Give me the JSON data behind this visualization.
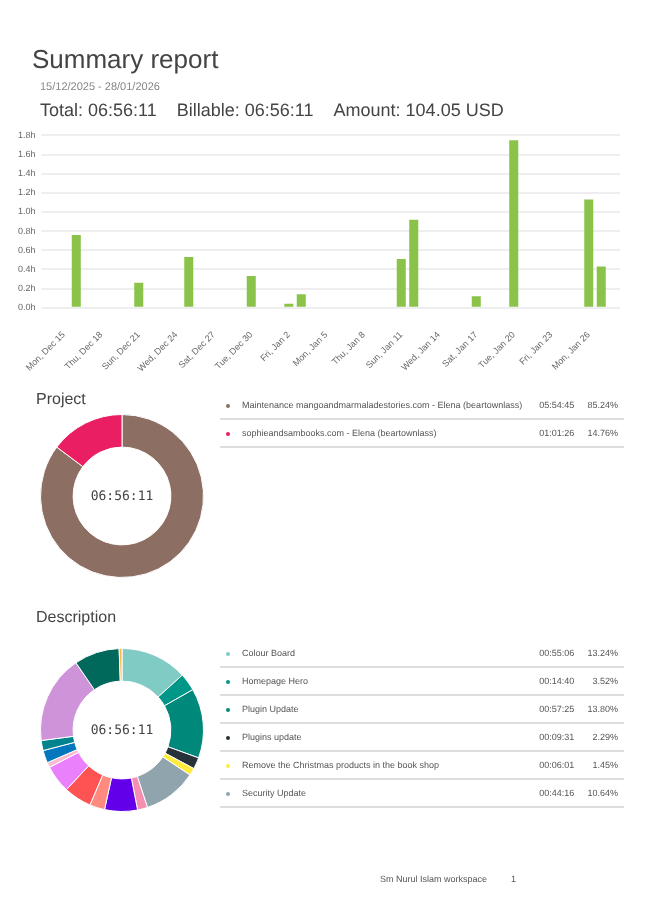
{
  "chart_data": [
    {
      "type": "bar",
      "title": "Summary report",
      "subtitle": "15/12/2025 - 28/01/2026",
      "annotations": [
        "Total: 06:56:11",
        "Billable: 06:56:11",
        "Amount: 104.05 USD"
      ],
      "categories": [
        "Mon, Dec 15",
        null,
        null,
        "Thu, Dec 18",
        null,
        null,
        "Sun, Dec 21",
        null,
        null,
        "Wed, Dec 24",
        null,
        null,
        "Sat, Dec 27",
        null,
        null,
        "Tue, Dec 30",
        null,
        null,
        "Fri, Jan 2",
        null,
        null,
        "Mon, Jan 5",
        null,
        null,
        "Thu, Jan 8",
        null,
        null,
        "Sun, Jan 11",
        null,
        null,
        "Wed, Jan 14",
        null,
        null,
        "Sat, Jan 17",
        null,
        null,
        "Tue, Jan 20",
        null,
        null,
        "Fri, Jan 23",
        null,
        null,
        "Mon, Jan 26",
        null,
        null
      ],
      "values": [
        0,
        0.76,
        0,
        0,
        0,
        0,
        0.26,
        0,
        0,
        0,
        0.53,
        0,
        0,
        0,
        0,
        0.33,
        0,
        0,
        0.04,
        0.14,
        0,
        0,
        0,
        0,
        0,
        0,
        0,
        0.51,
        0.92,
        0,
        0,
        0,
        0,
        0.12,
        0,
        0,
        1.75,
        0,
        0,
        0,
        0,
        0,
        1.13,
        0.43,
        0
      ],
      "color": "#8bc34a",
      "ylim": [
        0,
        1.8
      ],
      "yticks": [
        {
          "value": 0,
          "label": "0.0h"
        },
        {
          "value": 0.2,
          "label": "0.2h"
        },
        {
          "value": 0.4,
          "label": "0.4h"
        },
        {
          "value": 0.6,
          "label": "0.6h"
        },
        {
          "value": 0.8,
          "label": "0.8h"
        },
        {
          "value": 1,
          "label": "1.0h"
        },
        {
          "value": 1.2,
          "label": "1.2h"
        },
        {
          "value": 1.4,
          "label": "1.4h"
        },
        {
          "value": 1.6,
          "label": "1.6h"
        },
        {
          "value": 1.8,
          "label": "1.8h"
        }
      ],
      "grid": "y"
    },
    {
      "type": "donut",
      "title": "Project",
      "categories": [
        "Maintenance mangoandmarmaladestories.com - Elena (beartownlass)",
        "sophieandsambooks.com - Elena (beartownlass)"
      ],
      "values": [
        85.24,
        14.76
      ],
      "colors": [
        "#8d6e63",
        "#e91e63"
      ],
      "legend": "right",
      "value_labels": [
        "85.24%",
        "14.76%"
      ],
      "annotations": [
        "06:56:11",
        {
          "text": "05:54:45",
          "x": "Maintenance mangoandmarmaladestories.com - Elena (beartownlass)"
        },
        {
          "text": "01:01:26",
          "x": "sophieandsambooks.com - Elena (beartownlass)"
        }
      ]
    },
    {
      "type": "donut",
      "title": "Description",
      "categories": [
        "Colour Board",
        "Homepage Hero",
        "Plugin Update",
        "Plugins update",
        "Remove the Christmas products in the book shop",
        "Security Update",
        null,
        null,
        null,
        null,
        null,
        null,
        null,
        null,
        null,
        null,
        null
      ],
      "values": [
        13.24,
        3.52,
        13.8,
        2.29,
        1.45,
        10.64,
        2,
        6.5,
        3,
        5.5,
        5.5,
        1,
        2.5,
        2,
        17.5,
        9,
        0.56
      ],
      "colors": [
        "#80cbc4",
        "#009688",
        "#00897b",
        "#263238",
        "#ffeb3b",
        "#90a4ae",
        "#f48fb1",
        "#6200ea",
        "#ff8a80",
        "#ff5252",
        "#ea80fc",
        "#f8bbd0",
        "#0277bd",
        "#00838f",
        "#ce93d8",
        "#00695c",
        "#ffb74d"
      ],
      "legend": "right",
      "value_labels": [
        "13.24%",
        "3.52%",
        "13.80%",
        "2.29%",
        "1.45%",
        "10.64%",
        null,
        null,
        null,
        null,
        null,
        null,
        null,
        null,
        null,
        null,
        null
      ],
      "annotations": [
        "06:56:11",
        {
          "text": "00:55:06",
          "x": "Colour Board"
        },
        {
          "text": "00:14:40",
          "x": "Homepage Hero"
        },
        {
          "text": "00:57:25",
          "x": "Plugin Update"
        },
        {
          "text": "00:09:31",
          "x": "Plugins update"
        },
        {
          "text": "00:06:01",
          "x": "Remove the Christmas products in the book shop"
        },
        {
          "text": "00:44:16",
          "x": "Security Update"
        },
        "Sm Nurul Islam workspace",
        "1"
      ]
    }
  ]
}
